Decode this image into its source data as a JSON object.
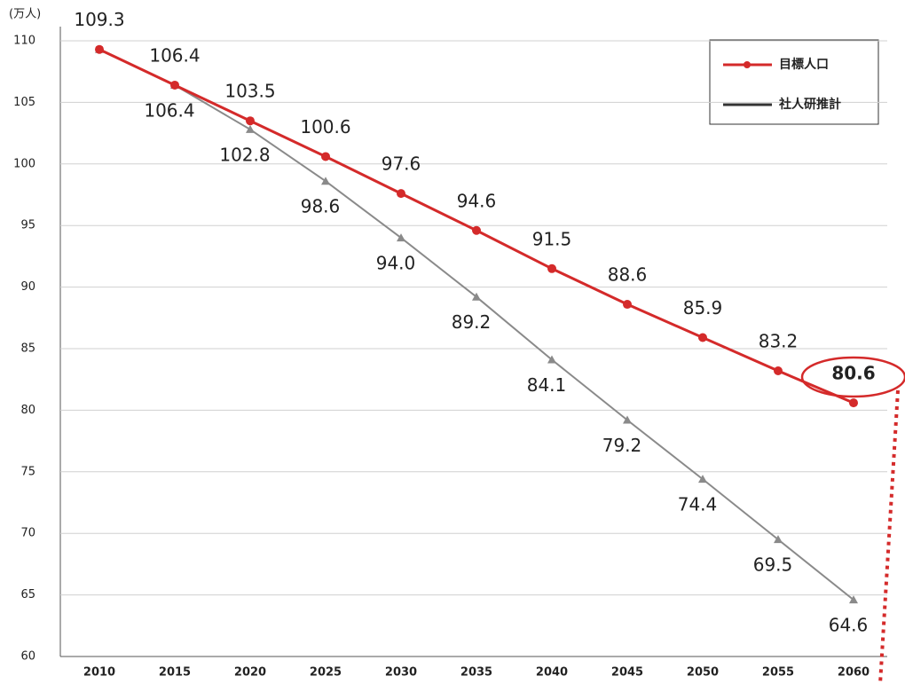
{
  "chart_data": {
    "type": "line",
    "y_unit": "(万人)",
    "categories": [
      "2010",
      "2015",
      "2020",
      "2025",
      "2030",
      "2035",
      "2040",
      "2045",
      "2050",
      "2055",
      "2060"
    ],
    "series": [
      {
        "name": "目標人口",
        "color": "#d42a2a",
        "values": [
          109.3,
          106.4,
          103.5,
          100.6,
          97.6,
          94.6,
          91.5,
          88.6,
          85.9,
          83.2,
          80.6
        ]
      },
      {
        "name": "社人研推計",
        "color": "#8a8a8a",
        "values": [
          109.3,
          106.4,
          102.8,
          98.6,
          94.0,
          89.2,
          84.1,
          79.2,
          74.4,
          69.5,
          64.6
        ],
        "value_labels": [
          null,
          "106.4",
          "102.8",
          "98.6",
          "94.0",
          "89.2",
          "84.1",
          "79.2",
          "74.4",
          "69.5",
          "64.6"
        ]
      }
    ],
    "ylim": [
      60,
      110
    ],
    "yticks": [
      60,
      65,
      70,
      75,
      80,
      85,
      90,
      95,
      100,
      105,
      110
    ],
    "grid": true,
    "legend": "upper right"
  }
}
